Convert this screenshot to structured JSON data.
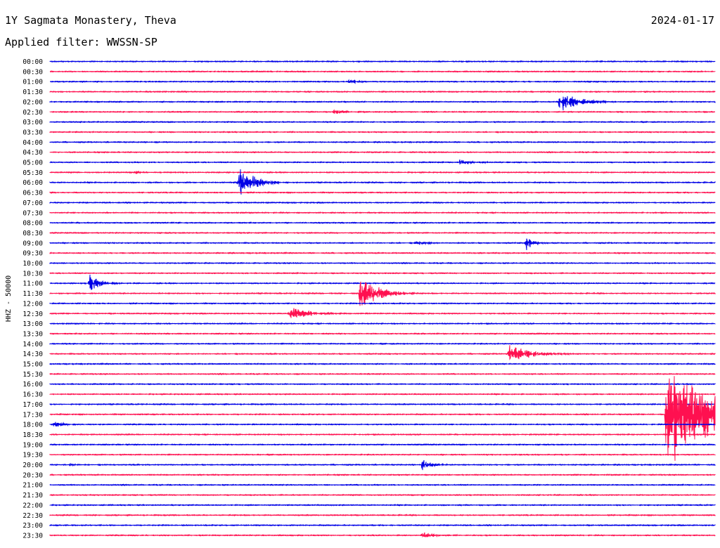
{
  "header": {
    "station": "1Y Sagmata Monastery, Theva",
    "date": "2024-01-17",
    "filter": "Applied filter: WWSSN-SP"
  },
  "chart_data": {
    "type": "line",
    "ylabel": "HHZ - 50000",
    "colors": [
      "#0000e6",
      "#ff1050"
    ],
    "rows": [
      "00:00",
      "00:30",
      "01:00",
      "01:30",
      "02:00",
      "02:30",
      "03:00",
      "03:30",
      "04:00",
      "04:30",
      "05:00",
      "05:30",
      "06:00",
      "06:30",
      "07:00",
      "07:30",
      "08:00",
      "08:30",
      "09:00",
      "09:30",
      "10:00",
      "10:30",
      "11:00",
      "11:30",
      "12:00",
      "12:30",
      "13:00",
      "13:30",
      "14:00",
      "14:30",
      "15:00",
      "15:30",
      "16:00",
      "16:30",
      "17:00",
      "17:30",
      "18:00",
      "18:30",
      "19:00",
      "19:30",
      "20:00",
      "20:30",
      "21:00",
      "21:30",
      "22:00",
      "22:30",
      "23:00",
      "23:30"
    ],
    "x_unit": "minutes after row start",
    "xlim": [
      0,
      30
    ],
    "events": [
      {
        "row": "01:00",
        "x": 13.5,
        "amplitude": 0.6,
        "duration": 1.2
      },
      {
        "row": "02:00",
        "x": 23.0,
        "amplitude": 3.0,
        "duration": 2.5
      },
      {
        "row": "02:30",
        "x": 12.8,
        "amplitude": 0.6,
        "duration": 1.5
      },
      {
        "row": "05:00",
        "x": 18.5,
        "amplitude": 0.8,
        "duration": 1.8
      },
      {
        "row": "05:30",
        "x": 3.8,
        "amplitude": 0.4,
        "duration": 1.2
      },
      {
        "row": "06:00",
        "x": 8.5,
        "amplitude": 4.5,
        "duration": 2.2
      },
      {
        "row": "09:00",
        "x": 16.5,
        "amplitude": 0.6,
        "duration": 1.5
      },
      {
        "row": "09:00",
        "x": 21.5,
        "amplitude": 2.5,
        "duration": 1.0
      },
      {
        "row": "11:00",
        "x": 1.8,
        "amplitude": 2.5,
        "duration": 1.5
      },
      {
        "row": "11:30",
        "x": 14.0,
        "amplitude": 4.5,
        "duration": 2.5
      },
      {
        "row": "12:30",
        "x": 10.8,
        "amplitude": 2.0,
        "duration": 2.5
      },
      {
        "row": "14:30",
        "x": 20.7,
        "amplitude": 2.5,
        "duration": 3.0
      },
      {
        "row": "17:30",
        "x": 27.8,
        "amplitude": 16.0,
        "duration": 6.0
      },
      {
        "row": "18:00",
        "x": 0.2,
        "amplitude": 1.0,
        "duration": 1.2
      },
      {
        "row": "20:00",
        "x": 0.8,
        "amplitude": 0.5,
        "duration": 1.0
      },
      {
        "row": "20:00",
        "x": 16.8,
        "amplitude": 1.8,
        "duration": 1.2
      },
      {
        "row": "23:30",
        "x": 16.8,
        "amplitude": 0.9,
        "duration": 2.0
      }
    ]
  }
}
